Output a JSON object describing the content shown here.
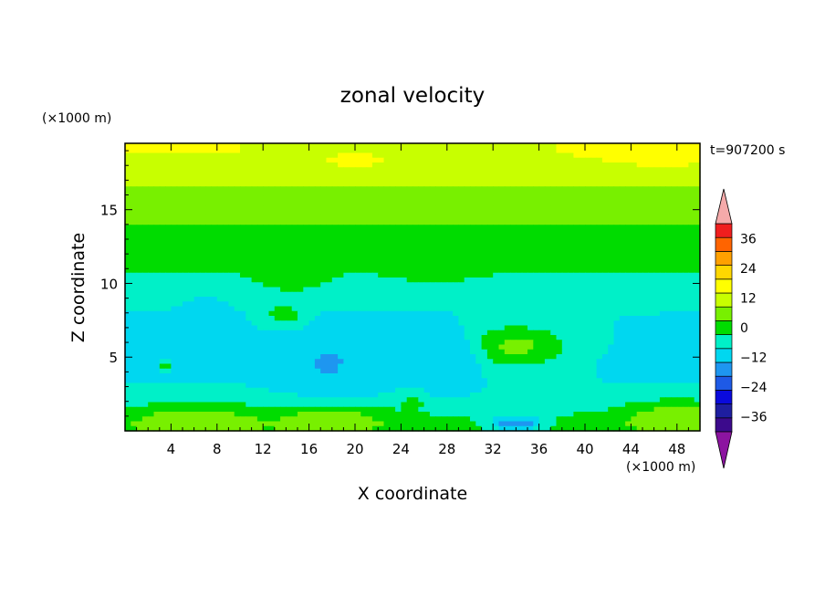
{
  "chart_data": {
    "type": "heatmap",
    "title": "zonal velocity",
    "time_label": "t=907200 s",
    "xlabel": "X coordinate",
    "ylabel": "Z coordinate",
    "x_unit": "(×1000 m)",
    "y_unit": "(×1000 m)",
    "xlim": [
      0,
      50
    ],
    "ylim": [
      0,
      19.5
    ],
    "x_ticks": [
      4,
      8,
      12,
      16,
      20,
      24,
      28,
      32,
      36,
      40,
      44,
      48
    ],
    "x_tick_labels": [
      "4",
      "8",
      "12",
      "16",
      "20",
      "24",
      "28",
      "32",
      "36",
      "40",
      "44",
      "48"
    ],
    "y_ticks": [
      5,
      10,
      15
    ],
    "y_tick_labels": [
      "5",
      "10",
      "15"
    ],
    "colorbar": {
      "levels": [
        -42,
        -36,
        -30,
        -24,
        -18,
        -12,
        -6,
        0,
        6,
        12,
        18,
        24,
        30,
        36,
        42
      ],
      "colors": [
        "#3c0a8c",
        "#1e1ea0",
        "#0a0adc",
        "#1e5ae6",
        "#1e96f0",
        "#00d7f0",
        "#00f0c8",
        "#00dc00",
        "#78f000",
        "#c8ff00",
        "#ffff00",
        "#ffd700",
        "#ffa000",
        "#ff6400",
        "#f01e1e"
      ],
      "under_color": "#8c14a0",
      "over_color": "#f5aaaa",
      "tick_values": [
        36,
        24,
        12,
        0,
        -12,
        -24,
        -36
      ],
      "tick_labels": [
        "36",
        "24",
        "12",
        "0",
        "−12",
        "−24",
        "−36"
      ]
    },
    "z_bands": [
      {
        "z": 18.9,
        "value": 17
      },
      {
        "z": 17.5,
        "value": 14
      },
      {
        "z": 15.8,
        "value": 10
      },
      {
        "z": 14.0,
        "value": 6
      },
      {
        "z": 12.0,
        "value": 2
      },
      {
        "z": 10.0,
        "value": -1
      },
      {
        "z": 8.0,
        "value": -6
      },
      {
        "z": 5.0,
        "value": -8
      },
      {
        "z": 2.0,
        "value": -5
      },
      {
        "z": 0.5,
        "value": 3
      }
    ],
    "features": [
      {
        "x": 2,
        "z": 19.3,
        "rx": 3,
        "rz": 0.4,
        "value": 22
      },
      {
        "x": 7,
        "z": 19.2,
        "rx": 3,
        "rz": 0.4,
        "value": 20
      },
      {
        "x": 20,
        "z": 18.3,
        "rx": 3,
        "rz": 0.5,
        "value": 20
      },
      {
        "x": 45,
        "z": 19.1,
        "rx": 6,
        "rz": 0.8,
        "value": 22
      },
      {
        "x": 47,
        "z": 18.2,
        "rx": 4,
        "rz": 0.6,
        "value": 19
      },
      {
        "x": 34,
        "z": 5.7,
        "rx": 6,
        "rz": 1.8,
        "value": 2
      },
      {
        "x": 33.5,
        "z": 5.7,
        "rx": 3.5,
        "rz": 1.0,
        "value": 8
      },
      {
        "x": 27,
        "z": 11.2,
        "rx": 3,
        "rz": 0.8,
        "value": 5
      },
      {
        "x": 14,
        "z": 7.8,
        "rx": 2,
        "rz": 0.8,
        "value": 4
      },
      {
        "x": 14.5,
        "z": 10.3,
        "rx": 3,
        "rz": 1.0,
        "value": 2
      },
      {
        "x": 18,
        "z": 4.5,
        "rx": 4,
        "rz": 2.5,
        "value": -12
      },
      {
        "x": 17.5,
        "z": 4.6,
        "rx": 0.7,
        "rz": 0.4,
        "value": -17
      },
      {
        "x": 7,
        "z": 7.5,
        "rx": 2,
        "rz": 1.5,
        "value": -12
      },
      {
        "x": 28,
        "z": 5.0,
        "rx": 3,
        "rz": 2.0,
        "value": -12
      },
      {
        "x": 34,
        "z": 0.5,
        "rx": 2.5,
        "rz": 0.5,
        "value": -17
      },
      {
        "x": 6,
        "z": 0.7,
        "rx": 6,
        "rz": 1.2,
        "value": 10
      },
      {
        "x": 18,
        "z": 0.7,
        "rx": 5,
        "rz": 1.1,
        "value": 10
      },
      {
        "x": 48,
        "z": 0.9,
        "rx": 5,
        "rz": 1.2,
        "value": 10
      },
      {
        "x": 25,
        "z": 2.0,
        "rx": 1,
        "rz": 0.6,
        "value": 4
      },
      {
        "x": 3.5,
        "z": 4.5,
        "rx": 0.5,
        "rz": 0.4,
        "value": 4
      }
    ]
  }
}
